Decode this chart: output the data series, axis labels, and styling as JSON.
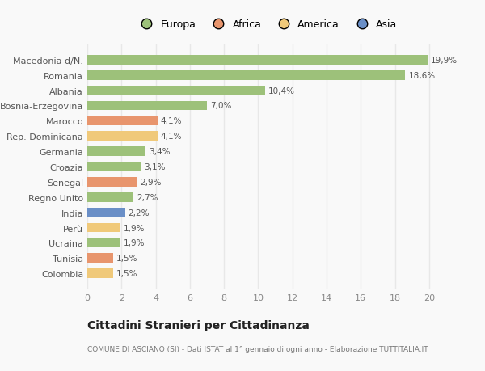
{
  "categories": [
    "Colombia",
    "Tunisia",
    "Ucraina",
    "Perù",
    "India",
    "Regno Unito",
    "Senegal",
    "Croazia",
    "Germania",
    "Rep. Dominicana",
    "Marocco",
    "Bosnia-Erzegovina",
    "Albania",
    "Romania",
    "Macedonia d/N."
  ],
  "values": [
    1.5,
    1.5,
    1.9,
    1.9,
    2.2,
    2.7,
    2.9,
    3.1,
    3.4,
    4.1,
    4.1,
    7.0,
    10.4,
    18.6,
    19.9
  ],
  "labels": [
    "1,5%",
    "1,5%",
    "1,9%",
    "1,9%",
    "2,2%",
    "2,7%",
    "2,9%",
    "3,1%",
    "3,4%",
    "4,1%",
    "4,1%",
    "7,0%",
    "10,4%",
    "18,6%",
    "19,9%"
  ],
  "colors": [
    "#f0c97a",
    "#e8956d",
    "#9dc17a",
    "#f0c97a",
    "#6a8fc7",
    "#9dc17a",
    "#e8956d",
    "#9dc17a",
    "#9dc17a",
    "#f0c97a",
    "#e8956d",
    "#9dc17a",
    "#9dc17a",
    "#9dc17a",
    "#9dc17a"
  ],
  "legend_labels": [
    "Europa",
    "Africa",
    "America",
    "Asia"
  ],
  "legend_colors": [
    "#9dc17a",
    "#e8956d",
    "#f0c97a",
    "#6a8fc7"
  ],
  "title": "Cittadini Stranieri per Cittadinanza",
  "subtitle": "COMUNE DI ASCIANO (SI) - Dati ISTAT al 1° gennaio di ogni anno - Elaborazione TUTTITALIA.IT",
  "xlim": [
    0,
    21
  ],
  "xticks": [
    0,
    2,
    4,
    6,
    8,
    10,
    12,
    14,
    16,
    18,
    20
  ],
  "background_color": "#f9f9f9",
  "grid_color": "#e8e8e8",
  "bar_height": 0.62
}
